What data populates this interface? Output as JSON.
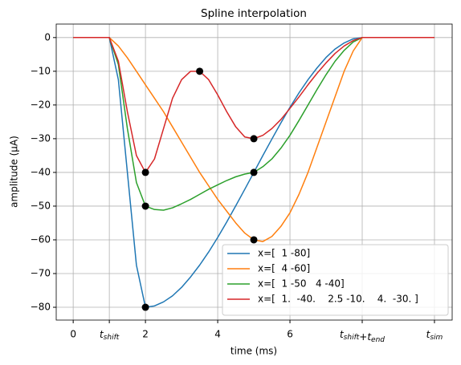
{
  "chart_data": {
    "type": "line",
    "title": "Spline interpolation",
    "x_label": "time (ms)",
    "y_label": "amplitude (µA)",
    "x": [
      0,
      1,
      1.25,
      1.5,
      1.75,
      2,
      2.25,
      2.5,
      2.75,
      3,
      3.25,
      3.5,
      3.75,
      4,
      4.25,
      4.5,
      4.75,
      5,
      5.25,
      5.5,
      5.75,
      6,
      6.25,
      6.5,
      6.75,
      7,
      7.25,
      7.5,
      7.75,
      8,
      10
    ],
    "series": [
      {
        "name": "x=[  1 -80]",
        "color": "#1f77b4",
        "values": [
          0,
          0,
          -12.5,
          -40,
          -67.5,
          -80,
          -79.6,
          -78.4,
          -76.6,
          -74.1,
          -71.0,
          -67.5,
          -63.6,
          -59.3,
          -54.7,
          -49.9,
          -45.0,
          -40,
          -35.0,
          -30.1,
          -25.3,
          -20.7,
          -16.4,
          -12.5,
          -9.0,
          -5.9,
          -3.4,
          -1.6,
          -0.4,
          0,
          0
        ]
      },
      {
        "name": "x=[  4 -60]",
        "color": "#ff7f0e",
        "values": [
          0,
          0,
          -2.5,
          -6,
          -10,
          -14,
          -18,
          -22,
          -26.5,
          -31,
          -35.5,
          -40,
          -44,
          -48,
          -51.5,
          -55,
          -58,
          -60,
          -60.5,
          -59,
          -56,
          -52,
          -46.5,
          -40,
          -32.5,
          -25,
          -17.5,
          -10,
          -4,
          0,
          0
        ]
      },
      {
        "name": "x=[  1 -50   4 -40]",
        "color": "#2ca02c",
        "values": [
          0,
          0,
          -8,
          -27,
          -43,
          -50,
          -51,
          -51.2,
          -50.5,
          -49.3,
          -48,
          -46.5,
          -45,
          -43.7,
          -42.4,
          -41.3,
          -40.5,
          -40,
          -38.3,
          -36,
          -32.8,
          -29,
          -24.6,
          -20,
          -15.4,
          -11,
          -7,
          -3.8,
          -1.3,
          0,
          0
        ]
      },
      {
        "name": "x=[  1.  -40.    2.5 -10.    4.  -30. ]",
        "color": "#d62728",
        "values": [
          0,
          0,
          -7,
          -22,
          -35,
          -40,
          -36,
          -27,
          -18,
          -12.5,
          -10,
          -10,
          -12.5,
          -17,
          -22,
          -26.5,
          -29.5,
          -30,
          -29,
          -27,
          -24.3,
          -21,
          -17.6,
          -14,
          -10.6,
          -7.5,
          -4.7,
          -2.5,
          -0.9,
          0,
          0
        ]
      }
    ],
    "markers": {
      "color": "#000000",
      "x": [
        2,
        5,
        2,
        5,
        2,
        3.5,
        5
      ],
      "y": [
        -80,
        -60,
        -50,
        -40,
        -40,
        -10,
        -30
      ]
    },
    "xlim": [
      -0.47,
      10.49
    ],
    "ylim": [
      -83.8,
      4.0
    ],
    "xticks": [
      0,
      {
        "value": 1,
        "label": "t_shift"
      },
      2,
      4,
      6,
      {
        "value": 8,
        "label": "t_shift+t_end"
      },
      {
        "value": 10,
        "label": "t_sim"
      }
    ],
    "yticks": [
      0,
      {
        "value": -10,
        "label": "−10"
      },
      {
        "value": -20,
        "label": "−20"
      },
      {
        "value": -30,
        "label": "−30"
      },
      {
        "value": -40,
        "label": "−40"
      },
      {
        "value": -50,
        "label": "−50"
      },
      {
        "value": -60,
        "label": "−60"
      },
      {
        "value": -70,
        "label": "−70"
      },
      {
        "value": -80,
        "label": "−80"
      }
    ],
    "grid": true,
    "legend": "lower right"
  }
}
